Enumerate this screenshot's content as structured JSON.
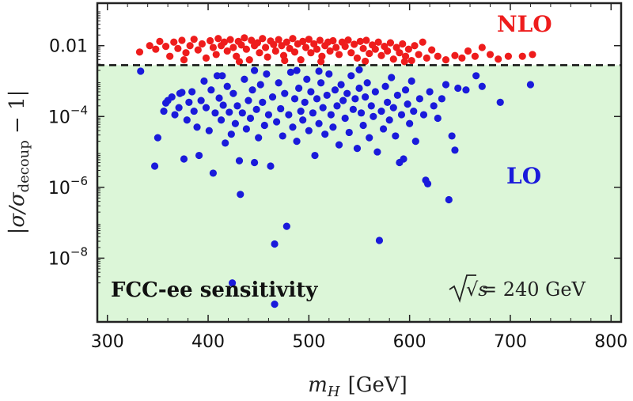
{
  "chart_data": {
    "type": "scatter",
    "xlabel_main": "m",
    "xlabel_sub": "H",
    "xlabel_unit": "[GeV]",
    "ylabel": "|σ/σ",
    "ylabel_sub": "decoup",
    "ylabel_tail": " − 1|",
    "xlim": [
      290,
      810
    ],
    "ylim_log10": [
      -9.8,
      -0.8
    ],
    "yscale": "log",
    "x_ticks": [
      300,
      400,
      500,
      600,
      700,
      800
    ],
    "x_tick_labels": [
      "300",
      "400",
      "500",
      "600",
      "700",
      "800"
    ],
    "y_ticks_log10": [
      -2,
      -4,
      -6,
      -8
    ],
    "y_tick_labels": [
      {
        "base": "0.01",
        "exp": ""
      },
      {
        "base": "10",
        "exp": "−4"
      },
      {
        "base": "10",
        "exp": "−6"
      },
      {
        "base": "10",
        "exp": "−8"
      }
    ],
    "threshold_log10": -2.55,
    "shaded_region": {
      "color": "#dcf6d8",
      "to_log10": -2.55
    },
    "annotations": {
      "nlo": "NLO",
      "lo": "LO",
      "region": "FCC-ee sensitivity",
      "energy_prefix": "√s",
      "energy_value": "= 240 GeV"
    },
    "series": [
      {
        "color": "#ee1c1c",
        "points": [
          [
            332,
            -2.18
          ],
          [
            342,
            -2.0
          ],
          [
            348,
            -2.1
          ],
          [
            352,
            -1.88
          ],
          [
            358,
            -2.02
          ],
          [
            362,
            -2.3
          ],
          [
            366,
            -1.9
          ],
          [
            370,
            -2.08
          ],
          [
            374,
            -1.85
          ],
          [
            378,
            -2.2
          ],
          [
            382,
            -2.0
          ],
          [
            386,
            -1.82
          ],
          [
            390,
            -2.12
          ],
          [
            394,
            -1.95
          ],
          [
            398,
            -2.35
          ],
          [
            402,
            -1.86
          ],
          [
            405,
            -2.05
          ],
          [
            408,
            -2.25
          ],
          [
            410,
            -1.8
          ],
          [
            413,
            -2.0
          ],
          [
            416,
            -1.9
          ],
          [
            419,
            -2.15
          ],
          [
            422,
            -1.83
          ],
          [
            425,
            -2.05
          ],
          [
            428,
            -2.3
          ],
          [
            430,
            -1.88
          ],
          [
            433,
            -1.98
          ],
          [
            436,
            -1.78
          ],
          [
            438,
            -2.1
          ],
          [
            441,
            -2.4
          ],
          [
            443,
            -1.85
          ],
          [
            446,
            -2.0
          ],
          [
            449,
            -1.92
          ],
          [
            451,
            -2.2
          ],
          [
            454,
            -1.8
          ],
          [
            457,
            -2.05
          ],
          [
            459,
            -2.32
          ],
          [
            462,
            -1.87
          ],
          [
            465,
            -1.97
          ],
          [
            467,
            -2.15
          ],
          [
            470,
            -1.83
          ],
          [
            473,
            -2.0
          ],
          [
            475,
            -2.28
          ],
          [
            478,
            -1.9
          ],
          [
            481,
            -2.08
          ],
          [
            484,
            -1.8
          ],
          [
            486,
            -2.18
          ],
          [
            489,
            -1.95
          ],
          [
            492,
            -2.4
          ],
          [
            494,
            -1.88
          ],
          [
            497,
            -2.05
          ],
          [
            500,
            -1.82
          ],
          [
            502,
            -2.2
          ],
          [
            505,
            -1.95
          ],
          [
            508,
            -2.1
          ],
          [
            511,
            -1.85
          ],
          [
            513,
            -2.3
          ],
          [
            516,
            -2.0
          ],
          [
            519,
            -1.9
          ],
          [
            521,
            -2.15
          ],
          [
            524,
            -1.86
          ],
          [
            527,
            -2.05
          ],
          [
            530,
            -2.25
          ],
          [
            533,
            -1.9
          ],
          [
            536,
            -2.02
          ],
          [
            539,
            -1.84
          ],
          [
            542,
            -2.2
          ],
          [
            545,
            -1.96
          ],
          [
            548,
            -2.35
          ],
          [
            551,
            -1.88
          ],
          [
            554,
            -2.08
          ],
          [
            557,
            -1.85
          ],
          [
            560,
            -2.22
          ],
          [
            563,
            -1.98
          ],
          [
            566,
            -2.1
          ],
          [
            569,
            -1.9
          ],
          [
            572,
            -2.28
          ],
          [
            575,
            -2.02
          ],
          [
            578,
            -2.15
          ],
          [
            581,
            -1.92
          ],
          [
            584,
            -2.38
          ],
          [
            587,
            -2.05
          ],
          [
            590,
            -2.2
          ],
          [
            593,
            -1.95
          ],
          [
            596,
            -2.3
          ],
          [
            599,
            -2.1
          ],
          [
            602,
            -2.42
          ],
          [
            605,
            -2.0
          ],
          [
            609,
            -2.25
          ],
          [
            613,
            -1.9
          ],
          [
            617,
            -2.35
          ],
          [
            622,
            -2.12
          ],
          [
            628,
            -2.3
          ],
          [
            636,
            -2.4
          ],
          [
            645,
            -2.28
          ],
          [
            652,
            -2.35
          ],
          [
            658,
            -2.15
          ],
          [
            665,
            -2.3
          ],
          [
            672,
            -2.05
          ],
          [
            680,
            -2.25
          ],
          [
            688,
            -2.38
          ],
          [
            698,
            -2.3
          ],
          [
            712,
            -2.3
          ],
          [
            722,
            -2.25
          ],
          [
            376,
            -2.4
          ],
          [
            431,
            -2.45
          ],
          [
            476,
            -2.42
          ],
          [
            512,
            -2.45
          ],
          [
            556,
            -2.44
          ],
          [
            595,
            -2.45
          ]
        ]
      },
      {
        "color": "#1a1adb",
        "points": [
          [
            333,
            -2.72
          ],
          [
            347,
            -5.4
          ],
          [
            350,
            -4.6
          ],
          [
            356,
            -3.85
          ],
          [
            358,
            -3.62
          ],
          [
            360,
            -3.55
          ],
          [
            364,
            -3.45
          ],
          [
            367,
            -3.95
          ],
          [
            371,
            -3.75
          ],
          [
            374,
            -3.32
          ],
          [
            376,
            -5.2
          ],
          [
            379,
            -4.1
          ],
          [
            381,
            -3.6
          ],
          [
            384,
            -3.3
          ],
          [
            386,
            -3.85
          ],
          [
            389,
            -4.3
          ],
          [
            391,
            -5.1
          ],
          [
            393,
            -3.55
          ],
          [
            396,
            -3.0
          ],
          [
            398,
            -3.75
          ],
          [
            401,
            -4.4
          ],
          [
            403,
            -3.25
          ],
          [
            405,
            -5.6
          ],
          [
            407,
            -3.9
          ],
          [
            409,
            -2.85
          ],
          [
            411,
            -3.48
          ],
          [
            413,
            -4.1
          ],
          [
            415,
            -3.68
          ],
          [
            417,
            -4.75
          ],
          [
            419,
            -3.15
          ],
          [
            421,
            -3.88
          ],
          [
            423,
            -4.5
          ],
          [
            425,
            -3.35
          ],
          [
            427,
            -4.2
          ],
          [
            429,
            -3.7
          ],
          [
            431,
            -5.25
          ],
          [
            432,
            -6.2
          ],
          [
            434,
            -3.9
          ],
          [
            436,
            -2.95
          ],
          [
            438,
            -4.35
          ],
          [
            440,
            -3.55
          ],
          [
            442,
            -4.05
          ],
          [
            444,
            -3.25
          ],
          [
            446,
            -5.3
          ],
          [
            448,
            -3.8
          ],
          [
            450,
            -4.6
          ],
          [
            452,
            -3.1
          ],
          [
            454,
            -3.6
          ],
          [
            456,
            -4.25
          ],
          [
            458,
            -2.8
          ],
          [
            460,
            -3.95
          ],
          [
            462,
            -5.4
          ],
          [
            464,
            -3.45
          ],
          [
            466,
            -7.6
          ],
          [
            468,
            -4.15
          ],
          [
            470,
            -3.05
          ],
          [
            472,
            -3.78
          ],
          [
            474,
            -4.55
          ],
          [
            476,
            -3.35
          ],
          [
            478,
            -7.1
          ],
          [
            480,
            -3.95
          ],
          [
            482,
            -2.75
          ],
          [
            484,
            -4.3
          ],
          [
            486,
            -3.5
          ],
          [
            488,
            -4.7
          ],
          [
            490,
            -3.2
          ],
          [
            492,
            -3.85
          ],
          [
            494,
            -4.1
          ],
          [
            496,
            -3.6
          ],
          [
            498,
            -2.95
          ],
          [
            500,
            -4.4
          ],
          [
            502,
            -3.3
          ],
          [
            504,
            -3.9
          ],
          [
            506,
            -5.1
          ],
          [
            508,
            -3.5
          ],
          [
            510,
            -4.2
          ],
          [
            512,
            -3.05
          ],
          [
            514,
            -3.75
          ],
          [
            516,
            -4.5
          ],
          [
            518,
            -3.4
          ],
          [
            520,
            -2.8
          ],
          [
            522,
            -3.95
          ],
          [
            524,
            -4.3
          ],
          [
            526,
            -3.25
          ],
          [
            528,
            -3.7
          ],
          [
            530,
            -4.8
          ],
          [
            532,
            -3.1
          ],
          [
            534,
            -3.55
          ],
          [
            536,
            -4.05
          ],
          [
            538,
            -3.35
          ],
          [
            540,
            -4.45
          ],
          [
            542,
            -2.85
          ],
          [
            544,
            -3.8
          ],
          [
            546,
            -3.5
          ],
          [
            548,
            -4.9
          ],
          [
            550,
            -3.2
          ],
          [
            552,
            -3.9
          ],
          [
            554,
            -4.25
          ],
          [
            556,
            -3.45
          ],
          [
            558,
            -3.05
          ],
          [
            560,
            -4.6
          ],
          [
            562,
            -3.7
          ],
          [
            564,
            -4.0
          ],
          [
            566,
            -3.3
          ],
          [
            568,
            -5.0
          ],
          [
            570,
            -7.5
          ],
          [
            572,
            -3.85
          ],
          [
            574,
            -4.35
          ],
          [
            576,
            -3.15
          ],
          [
            578,
            -3.6
          ],
          [
            580,
            -4.1
          ],
          [
            582,
            -2.9
          ],
          [
            584,
            -3.75
          ],
          [
            586,
            -4.55
          ],
          [
            588,
            -3.4
          ],
          [
            590,
            -5.3
          ],
          [
            592,
            -3.95
          ],
          [
            594,
            -5.2
          ],
          [
            596,
            -3.25
          ],
          [
            598,
            -3.65
          ],
          [
            600,
            -4.2
          ],
          [
            602,
            -3.0
          ],
          [
            604,
            -3.85
          ],
          [
            606,
            -4.7
          ],
          [
            610,
            -3.5
          ],
          [
            614,
            -3.95
          ],
          [
            616,
            -5.8
          ],
          [
            618,
            -5.9
          ],
          [
            620,
            -3.3
          ],
          [
            624,
            -3.7
          ],
          [
            628,
            -4.05
          ],
          [
            632,
            -3.5
          ],
          [
            636,
            -3.1
          ],
          [
            639,
            -6.35
          ],
          [
            642,
            -4.55
          ],
          [
            645,
            -4.95
          ],
          [
            648,
            -3.2
          ],
          [
            656,
            -3.25
          ],
          [
            666,
            -2.85
          ],
          [
            672,
            -3.15
          ],
          [
            690,
            -3.6
          ],
          [
            720,
            -3.1
          ],
          [
            446,
            -2.7
          ],
          [
            510,
            -2.72
          ],
          [
            550,
            -2.68
          ],
          [
            466,
            -9.3
          ],
          [
            424,
            -8.7
          ],
          [
            372,
            -3.35
          ],
          [
            414,
            -2.85
          ],
          [
            488,
            -2.7
          ]
        ]
      }
    ]
  }
}
